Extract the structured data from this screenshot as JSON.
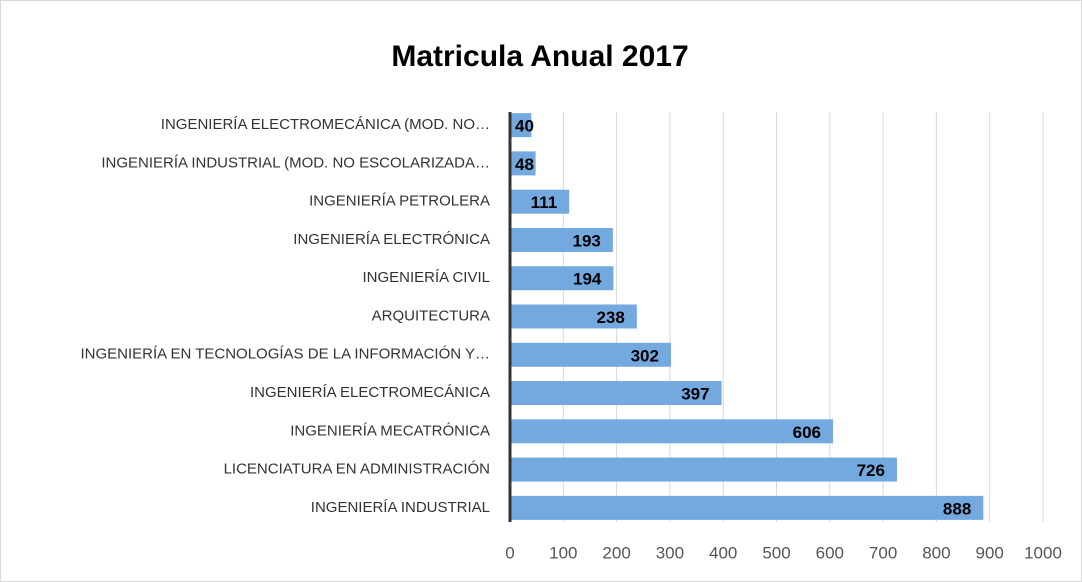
{
  "chart_data": {
    "type": "barh",
    "title": "Matricula Anual 2017",
    "categories": [
      "INGENIERÍA ELECTROMECÁNICA (MOD. NO…",
      "INGENIERÍA INDUSTRIAL (MOD. NO ESCOLARIZADA…",
      "INGENIERÍA PETROLERA",
      "INGENIERÍA ELECTRÓNICA",
      "INGENIERÍA CIVIL",
      "ARQUITECTURA",
      "INGENIERÍA EN TECNOLOGÍAS DE LA INFORMACIÓN Y…",
      "INGENIERÍA ELECTROMECÁNICA",
      "INGENIERÍA MECATRÓNICA",
      "LICENCIATURA EN ADMINISTRACIÓN",
      "INGENIERÍA INDUSTRIAL"
    ],
    "values": [
      40,
      48,
      111,
      193,
      194,
      238,
      302,
      397,
      606,
      726,
      888
    ],
    "color": "#74a9df",
    "xlim": [
      0,
      1000
    ],
    "xticks": [
      0,
      100,
      200,
      300,
      400,
      500,
      600,
      700,
      800,
      900,
      1000
    ],
    "grid": true
  }
}
